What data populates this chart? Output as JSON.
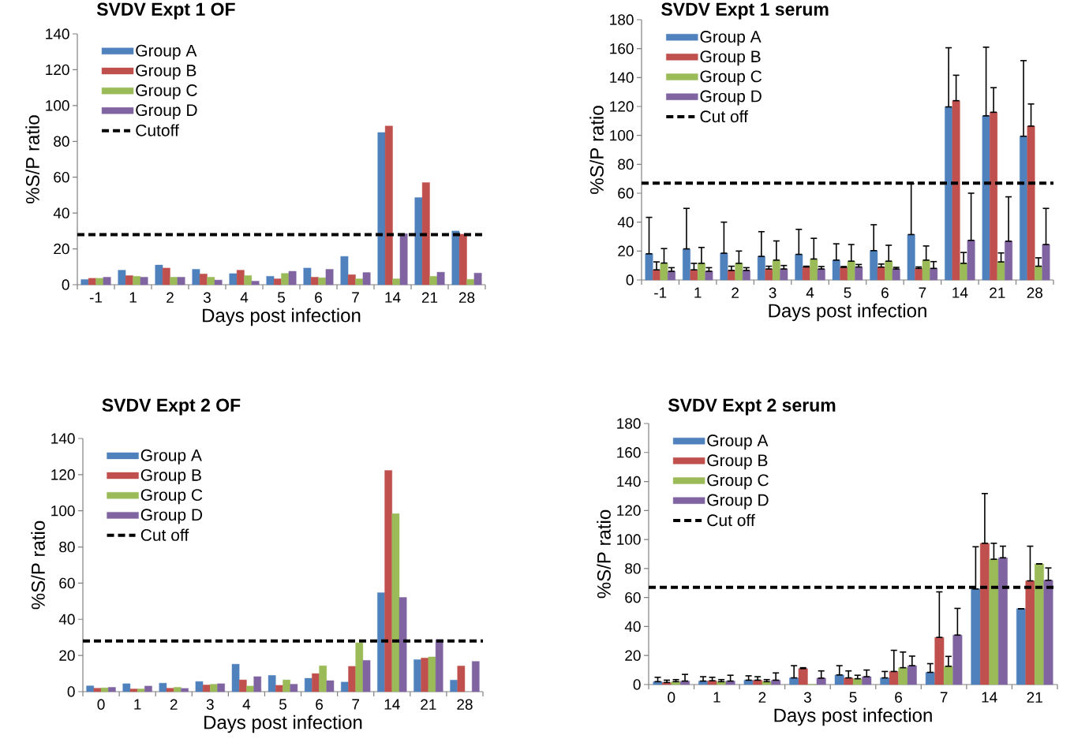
{
  "chart_data": [
    {
      "type": "bar",
      "title": "SVDV Expt 1 OF",
      "xlabel": "Days post infection",
      "ylabel": "%S/P ratio",
      "categories": [
        "-1",
        "1",
        "2",
        "3",
        "4",
        "5",
        "6",
        "7",
        "14",
        "21",
        "28"
      ],
      "ylim": [
        0,
        140
      ],
      "yticks": [
        0,
        20,
        40,
        60,
        80,
        100,
        120,
        140
      ],
      "legend": "top left",
      "series": [
        {
          "name": "Group A",
          "color": "#4f81bd",
          "values": [
            2.9,
            8.1,
            11,
            8.6,
            6.2,
            4.7,
            9.3,
            15.8,
            85,
            48.6,
            30
          ]
        },
        {
          "name": "Group B",
          "color": "#c0504d",
          "values": [
            3.6,
            5.1,
            9.3,
            6,
            8.1,
            3.3,
            4.2,
            5.6,
            88.6,
            57,
            28.2
          ]
        },
        {
          "name": "Group C",
          "color": "#9bbb59",
          "values": [
            3.6,
            4.7,
            4.2,
            4.2,
            5.1,
            6.3,
            3.9,
            3.3,
            3.3,
            4.7,
            3
          ]
        },
        {
          "name": "Group D",
          "color": "#8064a2",
          "values": [
            4.2,
            4.2,
            4.2,
            2.6,
            2,
            7.5,
            8.6,
            6.8,
            28.5,
            7,
            6.5
          ]
        }
      ],
      "ref_lines": [
        {
          "axis": "y",
          "value": 28,
          "label": "Cutoff",
          "color": "#000000",
          "line_style": "dashed"
        }
      ]
    },
    {
      "type": "bar",
      "title": "SVDV Expt 1 serum",
      "xlabel": "Days post infection",
      "ylabel": "%S/P ratio",
      "categories": [
        "-1",
        "1",
        "2",
        "3",
        "4",
        "5",
        "6",
        "7",
        "14",
        "21",
        "28"
      ],
      "ylim": [
        0,
        180
      ],
      "yticks": [
        0,
        20,
        40,
        60,
        80,
        100,
        120,
        140,
        160,
        180
      ],
      "legend": "top left",
      "series": [
        {
          "name": "Group A",
          "color": "#4f81bd",
          "values": [
            18.1,
            21.5,
            18.5,
            16.3,
            17.7,
            13.7,
            20.3,
            31.4,
            119.7,
            113.5,
            99.4
          ],
          "errors": [
            [
              18.1,
              43.3
            ],
            [
              21.5,
              49.5
            ],
            [
              18.5,
              40
            ],
            [
              16.3,
              33.4
            ],
            [
              17.7,
              35
            ],
            [
              13.7,
              25
            ],
            [
              20.3,
              38.2
            ],
            [
              31.4,
              66.6
            ],
            [
              119.7,
              160.6
            ],
            [
              113.5,
              161
            ],
            [
              99.4,
              151.7
            ]
          ]
        },
        {
          "name": "Group B",
          "color": "#c0504d",
          "values": [
            7,
            7,
            6.6,
            7.6,
            9,
            8.7,
            8.9,
            8,
            124,
            116,
            106.4
          ],
          "errors": [
            [
              7,
              12.5
            ],
            [
              7,
              11.5
            ],
            [
              6.6,
              9.5
            ],
            [
              7.6,
              9.5
            ],
            [
              9,
              9.5
            ],
            [
              8.7,
              9.3
            ],
            [
              8.9,
              11
            ],
            [
              8,
              9
            ],
            [
              124,
              141.6
            ],
            [
              116,
              133
            ],
            [
              106.4,
              121.7
            ]
          ]
        },
        {
          "name": "Group C",
          "color": "#9bbb59",
          "values": [
            11.7,
            11.5,
            11.5,
            13.7,
            14.5,
            13,
            13,
            13.7,
            11.5,
            12.5,
            9.5
          ],
          "errors": [
            [
              11.7,
              21.7
            ],
            [
              11.5,
              22.5
            ],
            [
              11.5,
              20
            ],
            [
              13.7,
              27
            ],
            [
              14.5,
              28.8
            ],
            [
              13,
              24.5
            ],
            [
              13,
              24
            ],
            [
              13.7,
              23.5
            ],
            [
              11.5,
              19
            ],
            [
              12.5,
              18.7
            ],
            [
              9.5,
              15.3
            ]
          ]
        },
        {
          "name": "Group D",
          "color": "#8064a2",
          "values": [
            6,
            6,
            6.6,
            7.6,
            7.6,
            9,
            7.6,
            8,
            27.4,
            26.8,
            24.5
          ],
          "errors": [
            [
              6,
              8.5
            ],
            [
              6,
              8.5
            ],
            [
              6.6,
              8.5
            ],
            [
              7.6,
              10
            ],
            [
              7.6,
              9.3
            ],
            [
              9,
              10.7
            ],
            [
              7.6,
              8.7
            ],
            [
              8,
              12.7
            ],
            [
              27.4,
              60
            ],
            [
              26.8,
              57.5
            ],
            [
              24.5,
              49.5
            ]
          ]
        }
      ],
      "ref_lines": [
        {
          "axis": "y",
          "value": 67,
          "label": "Cut off",
          "color": "#000000",
          "line_style": "dashed"
        }
      ]
    },
    {
      "type": "bar",
      "title": "SVDV Expt 2 OF",
      "xlabel": "Days post infection",
      "ylabel": "%S/P ratio",
      "categories": [
        "0",
        "1",
        "2",
        "3",
        "4",
        "5",
        "6",
        "7",
        "14",
        "21",
        "28"
      ],
      "ylim": [
        0,
        140
      ],
      "yticks": [
        0,
        20,
        40,
        60,
        80,
        100,
        120,
        140
      ],
      "legend": "top left",
      "series": [
        {
          "name": "Group A",
          "color": "#4f81bd",
          "values": [
            3.2,
            4.4,
            4.7,
            5.6,
            15.2,
            9,
            7.4,
            5.3,
            54.7,
            17.7,
            6.4
          ]
        },
        {
          "name": "Group B",
          "color": "#c0504d",
          "values": [
            1.9,
            1.5,
            1.9,
            3.7,
            6.5,
            3.5,
            10,
            14,
            122.3,
            18.6,
            14.2
          ]
        },
        {
          "name": "Group C",
          "color": "#9bbb59",
          "values": [
            2.1,
            1.5,
            2.4,
            4.1,
            3.1,
            6.5,
            14.3,
            27,
            98.4,
            19.2,
            null
          ]
        },
        {
          "name": "Group D",
          "color": "#8064a2",
          "values": [
            2.4,
            3.1,
            1.8,
            4.4,
            8.3,
            4.1,
            6.1,
            17.3,
            52.1,
            28.8,
            16.7
          ]
        }
      ],
      "ref_lines": [
        {
          "axis": "y",
          "value": 28,
          "label": "Cut off",
          "color": "#000000",
          "line_style": "dashed"
        }
      ]
    },
    {
      "type": "bar",
      "title": "SVDV Expt 2 serum",
      "xlabel": "Days post infection",
      "ylabel": "%S/P ratio",
      "categories": [
        "0",
        "1",
        "2",
        "3",
        "5",
        "6",
        "7",
        "14",
        "21"
      ],
      "ylim": [
        0,
        180
      ],
      "yticks": [
        0,
        20,
        40,
        60,
        80,
        100,
        120,
        140,
        160,
        180
      ],
      "legend": "top left",
      "series": [
        {
          "name": "Group A",
          "color": "#4f81bd",
          "values": [
            2,
            2.4,
            3,
            4.6,
            6.6,
            4.6,
            8.4,
            65.9,
            52.3
          ],
          "errors": [
            [
              2,
              5
            ],
            [
              2.4,
              5.4
            ],
            [
              3,
              6
            ],
            [
              4.6,
              13
            ],
            [
              6.6,
              13
            ],
            [
              4.6,
              9
            ],
            [
              8.4,
              14.4
            ],
            [
              65.9,
              95
            ],
            [
              52.3,
              52.3
            ]
          ]
        },
        {
          "name": "Group B",
          "color": "#c0504d",
          "values": [
            1.4,
            2.6,
            3,
            11,
            4.6,
            9,
            32.5,
            97.4,
            71.5
          ],
          "errors": [
            [
              1.4,
              3
            ],
            [
              2.6,
              5
            ],
            [
              3,
              5.4
            ],
            [
              11,
              11.6
            ],
            [
              4.6,
              9.4
            ],
            [
              9,
              23.6
            ],
            [
              32.5,
              63.9
            ],
            [
              97.4,
              131.7
            ],
            [
              71.5,
              95.4
            ]
          ]
        },
        {
          "name": "Group C",
          "color": "#9bbb59",
          "values": [
            2,
            2,
            2,
            0,
            4,
            11.6,
            12.6,
            86.4,
            83.2
          ],
          "errors": [
            [
              2,
              3.4
            ],
            [
              2,
              3.4
            ],
            [
              2,
              3.4
            ],
            null,
            [
              4,
              6.4
            ],
            [
              11.6,
              22.4
            ],
            [
              12.6,
              19.4
            ],
            [
              86.4,
              97.4
            ],
            [
              83.2,
              83.2
            ]
          ]
        },
        {
          "name": "Group D",
          "color": "#8064a2",
          "values": [
            2.4,
            2.4,
            3,
            4.4,
            5.4,
            13,
            34.1,
            87.4,
            71.9
          ],
          "errors": [
            [
              2.4,
              7
            ],
            [
              2.4,
              6.4
            ],
            [
              3,
              8
            ],
            [
              4.4,
              9.4
            ],
            [
              5.4,
              10
            ],
            [
              13,
              19.6
            ],
            [
              34.1,
              52.5
            ],
            [
              87.4,
              95.4
            ],
            [
              71.9,
              80.4
            ]
          ]
        }
      ],
      "ref_lines": [
        {
          "axis": "y",
          "value": 67,
          "label": "Cut off",
          "color": "#000000",
          "line_style": "dashed"
        }
      ]
    }
  ]
}
